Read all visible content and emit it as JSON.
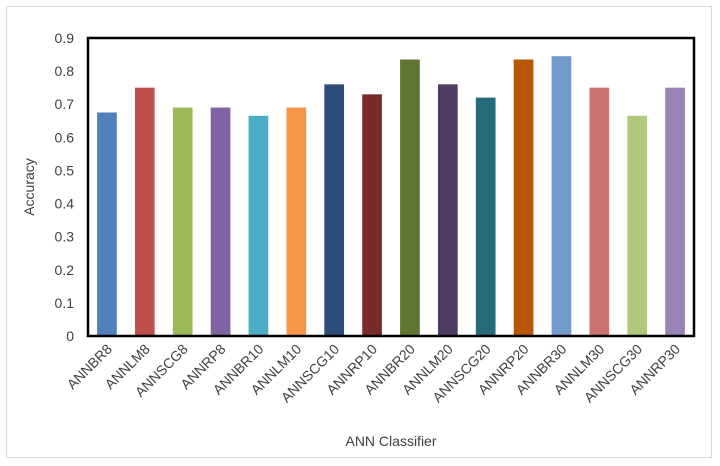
{
  "chart_data": {
    "type": "bar",
    "title": "",
    "xlabel": "ANN Classifier",
    "ylabel": "Accuracy",
    "ylim": [
      0,
      0.9
    ],
    "yticks": [
      "0",
      "0.1",
      "0.2",
      "0.3",
      "0.4",
      "0.5",
      "0.6",
      "0.7",
      "0.8",
      "0.9"
    ],
    "grid": false,
    "legend": "none",
    "categories": [
      "ANNBR8",
      "ANNLM8",
      "ANNSCG8",
      "ANNRP8",
      "ANNBR10",
      "ANNLM10",
      "ANNSCG10",
      "ANNRP10",
      "ANNBR20",
      "ANNLM20",
      "ANNSCG20",
      "ANNRP20",
      "ANNBR30",
      "ANNLM30",
      "ANNSCG30",
      "ANNRP30"
    ],
    "values": [
      0.675,
      0.75,
      0.69,
      0.69,
      0.665,
      0.69,
      0.76,
      0.73,
      0.835,
      0.76,
      0.72,
      0.835,
      0.845,
      0.75,
      0.665,
      0.75
    ],
    "colors": [
      "#4f81bd",
      "#c0504d",
      "#9bbb59",
      "#8064a2",
      "#4bacc6",
      "#f79646",
      "#2c4d75",
      "#772c2a",
      "#5f7530",
      "#4d3b62",
      "#276a7c",
      "#b65708",
      "#729aca",
      "#cd7371",
      "#afc97a",
      "#9983b5"
    ]
  }
}
